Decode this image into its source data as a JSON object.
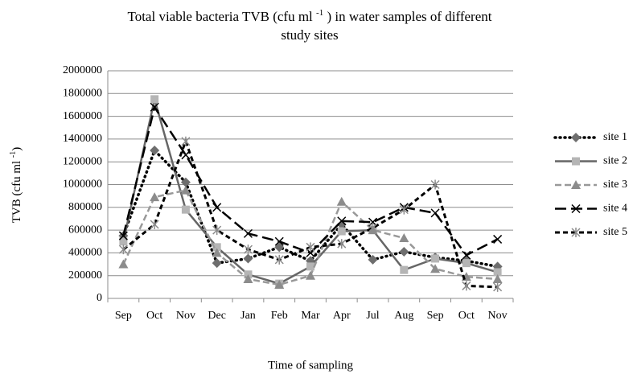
{
  "chart_data": {
    "type": "line",
    "title": [
      "Total viable bacteria TVB (cfu ml ",
      "-1",
      " ) in water samples of different",
      "study sites"
    ],
    "x_label": "Time of sampling",
    "y_label": [
      "TVB (cfu ml ",
      "-1",
      ")"
    ],
    "categories": [
      "Sep",
      "Oct",
      "Nov",
      "Dec",
      "Jan",
      "Feb",
      "Mar",
      "Apr",
      "Jul",
      "Aug",
      "Sep",
      "Oct",
      "Nov"
    ],
    "ylim": [
      0,
      2000000
    ],
    "yticks": [
      0,
      200000,
      400000,
      600000,
      800000,
      1000000,
      1200000,
      1400000,
      1600000,
      1800000,
      2000000
    ],
    "grid": true,
    "legend": "right",
    "series": [
      {
        "name": "site 1",
        "color": "#000000",
        "marker_color": "#6e6e6e",
        "marker": "diamond",
        "line_style": "dotted",
        "values": [
          550000,
          1300000,
          1020000,
          310000,
          350000,
          450000,
          330000,
          650000,
          340000,
          410000,
          360000,
          330000,
          280000
        ]
      },
      {
        "name": "site 2",
        "color": "#666666",
        "marker_color": "#b5b5b5",
        "marker": "square",
        "line_style": "solid",
        "values": [
          500000,
          1750000,
          780000,
          450000,
          210000,
          130000,
          280000,
          590000,
          600000,
          250000,
          350000,
          310000,
          230000
        ]
      },
      {
        "name": "site 3",
        "color": "#999999",
        "marker_color": "#8c8c8c",
        "marker": "triangle",
        "line_style": "dashed",
        "values": [
          300000,
          890000,
          950000,
          400000,
          170000,
          120000,
          200000,
          850000,
          600000,
          530000,
          260000,
          190000,
          170000
        ]
      },
      {
        "name": "site 4",
        "color": "#000000",
        "marker_color": "#000000",
        "marker": "x",
        "line_style": "long-dash",
        "values": [
          550000,
          1680000,
          1260000,
          800000,
          570000,
          500000,
          400000,
          680000,
          670000,
          800000,
          750000,
          380000,
          520000
        ]
      },
      {
        "name": "site 5",
        "color": "#000000",
        "marker_color": "#8c8c8c",
        "marker": "star",
        "line_style": "short-dash",
        "values": [
          430000,
          650000,
          1380000,
          600000,
          430000,
          340000,
          450000,
          480000,
          620000,
          780000,
          1000000,
          110000,
          100000
        ]
      }
    ]
  }
}
